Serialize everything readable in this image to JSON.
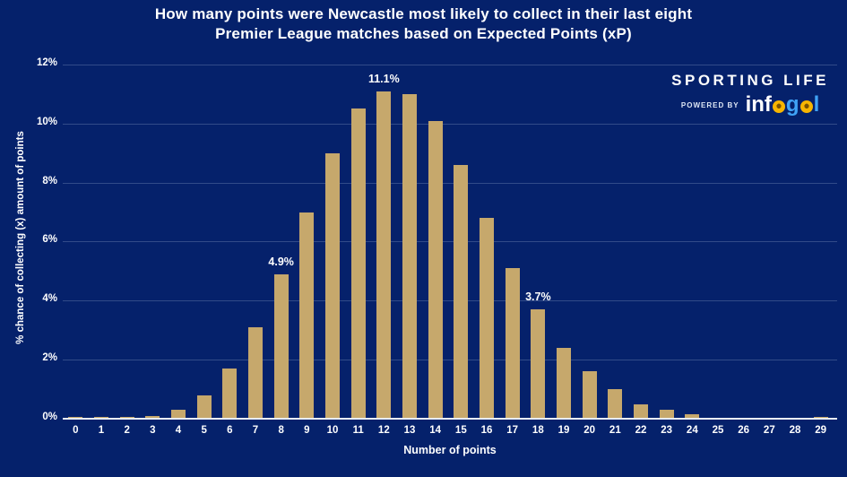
{
  "title": {
    "line1": "How many points were Newcastle most likely to collect in their last eight",
    "line2": "Premier League matches based on Expected Points (xP)"
  },
  "branding": {
    "name": "SPORTING LIFE",
    "powered_by": "POWERED BY",
    "logo_segments": [
      {
        "text": "inf",
        "color": "#ffffff"
      },
      {
        "ball": true
      },
      {
        "text": "g",
        "color": "#3fa3f7"
      },
      {
        "ball": true
      },
      {
        "text": "l",
        "color": "#3fa3f7"
      }
    ],
    "ball_color": "#f7b500",
    "ball_dot_color": "#7a5200"
  },
  "chart_data": {
    "type": "bar",
    "title": "How many points were Newcastle most likely to collect in their last eight Premier League matches based on Expected Points (xP)",
    "xlabel": "Number of points",
    "ylabel": "% chance of collecting (x) amount of points",
    "categories": [
      "0",
      "1",
      "2",
      "3",
      "4",
      "5",
      "6",
      "7",
      "8",
      "9",
      "10",
      "11",
      "12",
      "13",
      "14",
      "15",
      "16",
      "17",
      "18",
      "19",
      "20",
      "21",
      "22",
      "23",
      "24",
      "25",
      "26",
      "27",
      "28",
      "29"
    ],
    "values": [
      0.05,
      0.05,
      0.05,
      0.1,
      0.3,
      0.8,
      1.7,
      3.1,
      4.9,
      7.0,
      9.0,
      10.5,
      11.1,
      11.0,
      10.1,
      8.6,
      6.8,
      5.1,
      3.7,
      2.4,
      1.6,
      1.0,
      0.5,
      0.3,
      0.15,
      0,
      0,
      0,
      0,
      0.05
    ],
    "unit": "%",
    "ylim": [
      0,
      12
    ],
    "y_ticks": [
      {
        "value": 0,
        "label": "0%"
      },
      {
        "value": 2,
        "label": "2%"
      },
      {
        "value": 4,
        "label": "4%"
      },
      {
        "value": 6,
        "label": "6%"
      },
      {
        "value": 8,
        "label": "8%"
      },
      {
        "value": 10,
        "label": "10%"
      },
      {
        "value": 12,
        "label": "12%"
      }
    ],
    "annotations": [
      {
        "index": 8,
        "text": "4.9%"
      },
      {
        "index": 12,
        "text": "11.1%"
      },
      {
        "index": 18,
        "text": "3.7%"
      }
    ],
    "bar_color": "#c6a86c",
    "background_color": "#05216b",
    "grid": true,
    "legend": false
  }
}
